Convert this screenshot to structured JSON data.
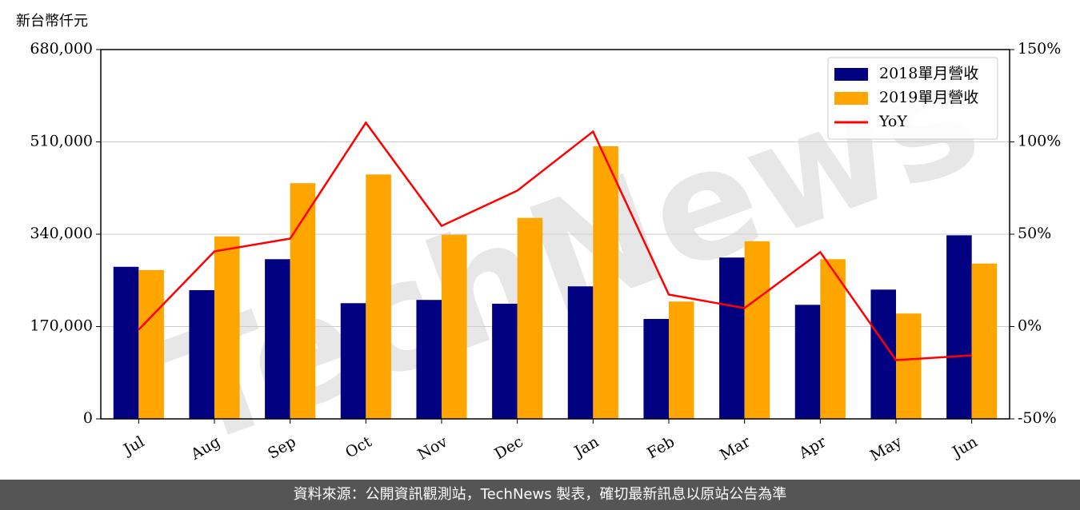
{
  "chart_data": {
    "type": "bar",
    "unit_label": "新台幣仟元",
    "watermark": "TechNews",
    "footer": "資料來源：公開資訊觀測站，TechNews 製表，確切最新訊息以原站公告為準",
    "categories": [
      "Jul",
      "Aug",
      "Sep",
      "Oct",
      "Nov",
      "Dec",
      "Jan",
      "Feb",
      "Mar",
      "Apr",
      "May",
      "Jun"
    ],
    "series": [
      {
        "name": "2018單月營收",
        "color": "#000080",
        "values": [
          280000,
          237000,
          294000,
          213000,
          219000,
          212000,
          244000,
          184000,
          297000,
          210000,
          238000,
          338000
        ]
      },
      {
        "name": "2019單月營收",
        "color": "#ffa500",
        "values": [
          274000,
          336000,
          434000,
          450000,
          339000,
          370000,
          502000,
          216000,
          327000,
          294000,
          194000,
          286000
        ]
      },
      {
        "name": "YoY",
        "color": "#ff0000",
        "type": "line",
        "axis": "y2",
        "values": [
          -1.7,
          40.7,
          47.6,
          110.4,
          54.5,
          73.6,
          105.6,
          17.3,
          10,
          40.3,
          -18.2,
          -15.6
        ]
      }
    ],
    "ylim": [
      0,
      680000
    ],
    "yticks": [
      0,
      {
        "value": 170000,
        "label": "170,000"
      },
      {
        "value": 340000,
        "label": "340,000"
      },
      {
        "value": 510000,
        "label": "510,000"
      },
      {
        "value": 680000,
        "label": "680,000"
      }
    ],
    "y2lim": [
      -50,
      150
    ],
    "y2ticks": [
      {
        "value": -50,
        "label": "-50%"
      },
      {
        "value": 0,
        "label": "0%"
      },
      {
        "value": 50,
        "label": "50%"
      },
      {
        "value": 100,
        "label": "100%"
      },
      {
        "value": 150,
        "label": "150%"
      }
    ],
    "grid": true,
    "legend": "upper right"
  }
}
